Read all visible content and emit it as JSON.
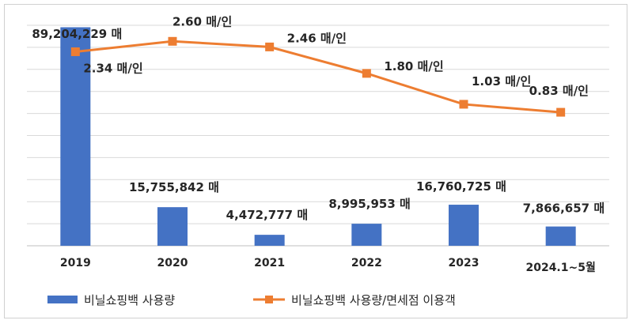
{
  "chart_data": {
    "type": "bar+line",
    "categories": [
      "2019",
      "2020",
      "2021",
      "2022",
      "2023",
      "2024.1~5월"
    ],
    "series": [
      {
        "name": "비닐쇼핑백 사용량",
        "type": "bar",
        "color": "#4472C4",
        "values": [
          89204229,
          15755842,
          4472777,
          8995953,
          16760725,
          7866657
        ],
        "labels": [
          "89,204,229 매",
          "15,755,842 매",
          "4,472,777 매",
          "8,995,953 매",
          "16,760,725 매",
          "7,866,657 매"
        ]
      },
      {
        "name": "비닐쇼핑백 사용량/면세점 이용객",
        "type": "line",
        "color": "#ED7D31",
        "values": [
          2.34,
          2.6,
          2.46,
          1.8,
          1.03,
          0.83
        ],
        "labels": [
          "2.34 매/인",
          "2.60 매/인",
          "2.46 매/인",
          "1.80 매/인",
          "1.03 매/인",
          "0.83 매/인"
        ]
      }
    ],
    "bar_ylim": [
      0,
      90000000
    ],
    "line_ylim": [
      -2.5,
      3.0
    ],
    "grid": true,
    "legend_position": "bottom-left"
  }
}
